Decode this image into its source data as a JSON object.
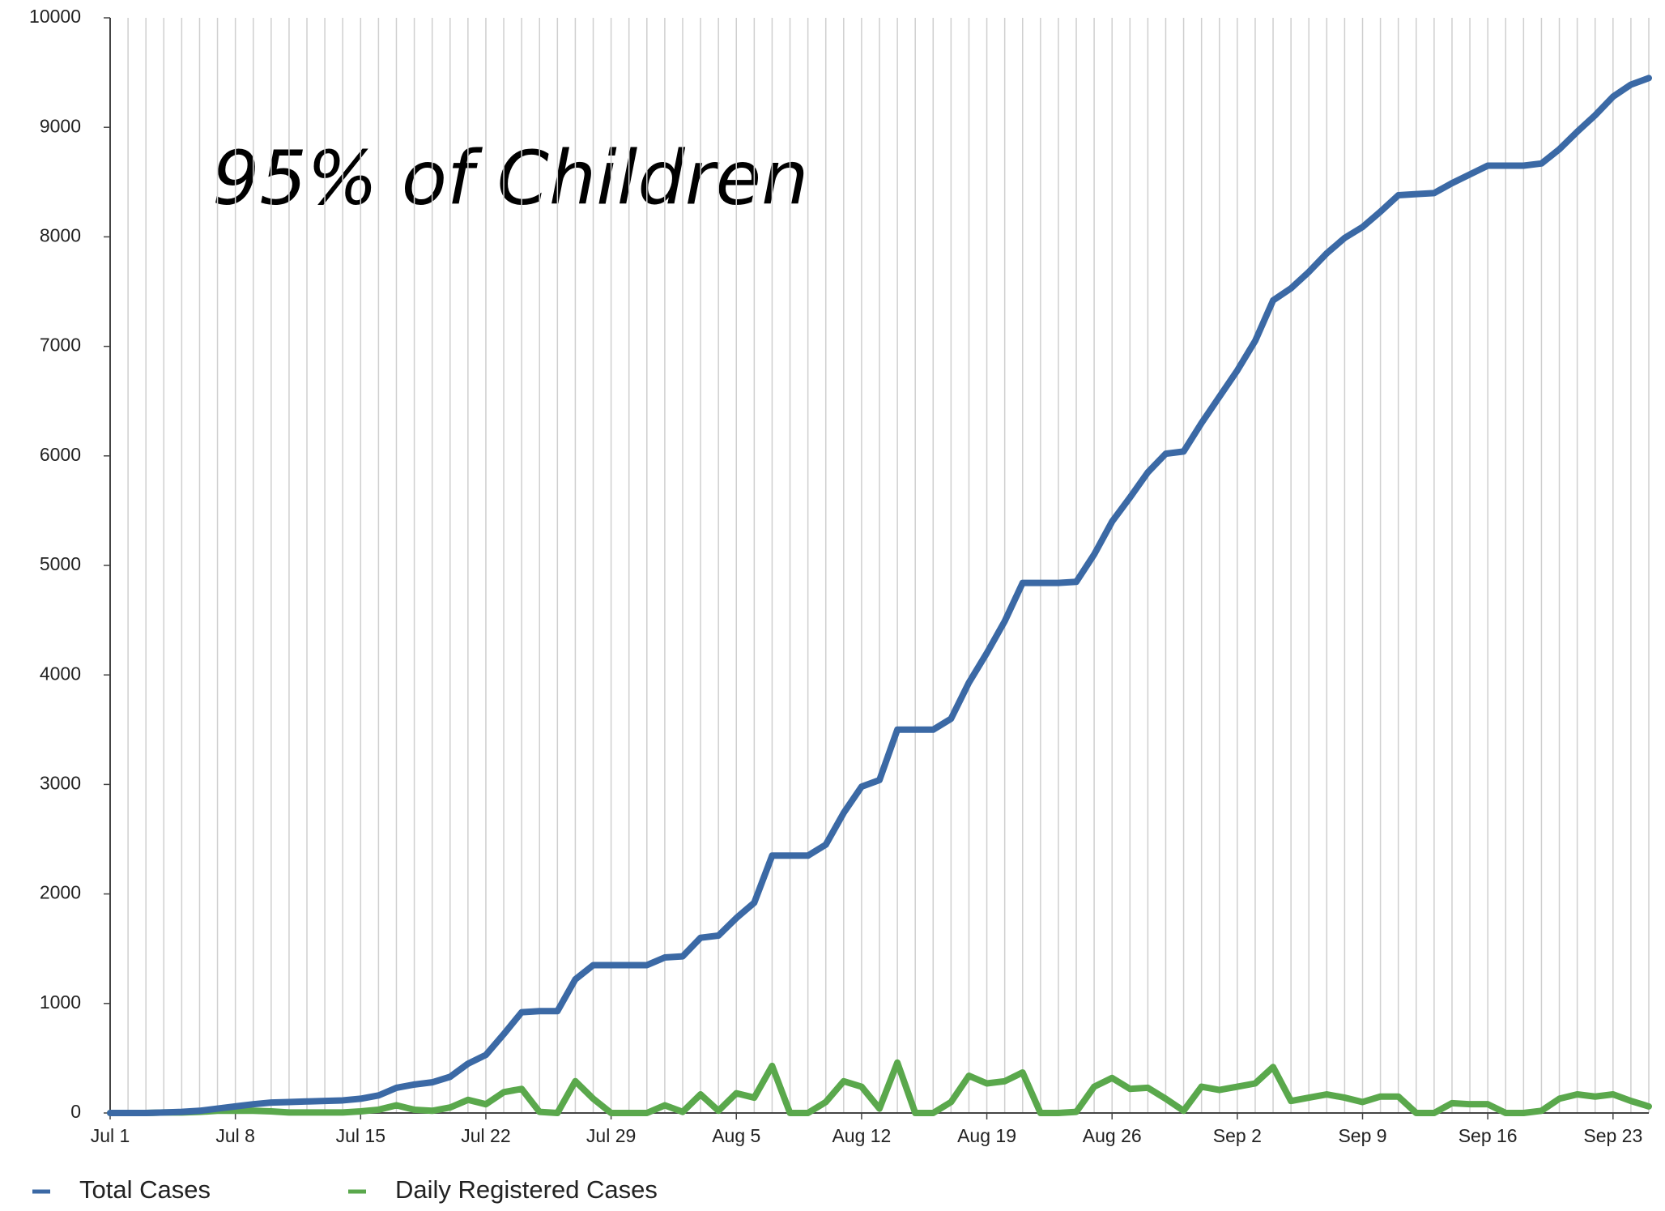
{
  "chart_data": {
    "type": "line",
    "annotation": "95% of Children",
    "categories": [
      "Jul 1",
      null,
      null,
      null,
      null,
      null,
      null,
      "Jul 8",
      null,
      null,
      null,
      null,
      null,
      null,
      "Jul 15",
      null,
      null,
      null,
      null,
      null,
      null,
      "Jul 22",
      null,
      null,
      null,
      null,
      null,
      null,
      "Jul 29",
      null,
      null,
      null,
      null,
      null,
      null,
      "Aug 5",
      null,
      null,
      null,
      null,
      null,
      null,
      "Aug 12",
      null,
      null,
      null,
      null,
      null,
      null,
      "Aug 19",
      null,
      null,
      null,
      null,
      null,
      null,
      "Aug 26",
      null,
      null,
      null,
      null,
      null,
      null,
      "Sep 2",
      null,
      null,
      null,
      null,
      null,
      null,
      "Sep 9",
      null,
      null,
      null,
      null,
      null,
      null,
      "Sep 16",
      null,
      null,
      null,
      null,
      null,
      null,
      "Sep 23",
      null,
      null
    ],
    "series": [
      {
        "name": "Total Cases",
        "color": "#3b69a5",
        "values": [
          0,
          0,
          0,
          5,
          10,
          20,
          40,
          60,
          80,
          95,
          100,
          105,
          110,
          115,
          130,
          160,
          230,
          260,
          280,
          330,
          450,
          530,
          720,
          920,
          930,
          930,
          1220,
          1350,
          1350,
          1350,
          1350,
          1420,
          1430,
          1600,
          1620,
          1780,
          1920,
          2350,
          2350,
          2350,
          2450,
          2740,
          2980,
          3040,
          3500,
          3500,
          3500,
          3600,
          3930,
          4200,
          4490,
          4840,
          4840,
          4840,
          4850,
          5100,
          5400,
          5620,
          5850,
          6020,
          6040,
          6300,
          6540,
          6780,
          7050,
          7420,
          7530,
          7680,
          7850,
          7990,
          8090,
          8230,
          8380,
          8390,
          8400,
          8490,
          8570,
          8650,
          8650,
          8650,
          8670,
          8800,
          8960,
          9110,
          9280,
          9390,
          9450
        ]
      },
      {
        "name": "Daily Registered Cases",
        "color": "#5aa84c",
        "values": [
          0,
          0,
          0,
          5,
          5,
          10,
          20,
          20,
          20,
          15,
          5,
          5,
          5,
          5,
          15,
          30,
          70,
          30,
          20,
          50,
          120,
          80,
          190,
          220,
          10,
          0,
          290,
          130,
          0,
          0,
          0,
          70,
          10,
          170,
          20,
          180,
          140,
          430,
          0,
          0,
          100,
          290,
          240,
          40,
          460,
          0,
          0,
          100,
          340,
          270,
          290,
          370,
          0,
          0,
          10,
          240,
          320,
          220,
          230,
          130,
          20,
          240,
          210,
          240,
          270,
          420,
          110,
          140,
          170,
          140,
          100,
          150,
          150,
          0,
          0,
          90,
          80,
          80,
          0,
          0,
          20,
          130,
          170,
          150,
          170,
          110,
          60
        ]
      }
    ],
    "ylim": [
      0,
      10000
    ],
    "yticks": [
      0,
      1000,
      2000,
      3000,
      4000,
      5000,
      6000,
      7000,
      8000,
      9000,
      10000
    ],
    "grid": "vertical",
    "legend": "bottom-left"
  }
}
